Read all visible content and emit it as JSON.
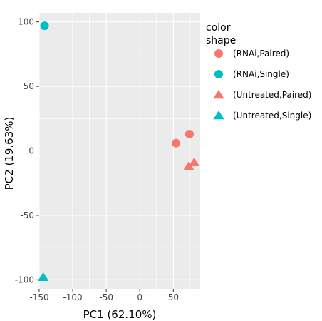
{
  "chart_data": {
    "type": "scatter",
    "xlabel": "PC1 (62.10%)",
    "ylabel": "PC2 (19.63%)",
    "xlim": [
      -150,
      90
    ],
    "ylim": [
      -107,
      107
    ],
    "x_ticks": [
      -150,
      -100,
      -50,
      0,
      50
    ],
    "y_ticks": [
      -100,
      -50,
      0,
      50,
      100
    ],
    "x_tick_labels": [
      "-150",
      "-100",
      "-50",
      "0",
      "50"
    ],
    "y_tick_labels": [
      "-100",
      "-50",
      "0",
      "50",
      "100"
    ],
    "grid": true,
    "panel_background": "#ebebeb",
    "grid_color": "#ffffff",
    "legend": {
      "placement": "right",
      "title_line1": "color",
      "title_line2": "shape",
      "entries": [
        {
          "label": "(RNAi,Paired)",
          "color": "#f8766d",
          "shape": "circle"
        },
        {
          "label": "(RNAi,Single)",
          "color": "#00bfc4",
          "shape": "circle"
        },
        {
          "label": "(Untreated,Paired)",
          "color": "#f8766d",
          "shape": "triangle"
        },
        {
          "label": "(Untreated,Single)",
          "color": "#00bfc4",
          "shape": "triangle"
        }
      ]
    },
    "series": [
      {
        "group": "(RNAi,Paired)",
        "color": "#f8766d",
        "shape": "circle",
        "points": [
          {
            "x": 54,
            "y": 6
          },
          {
            "x": 74,
            "y": 13
          }
        ]
      },
      {
        "group": "(RNAi,Single)",
        "color": "#00bfc4",
        "shape": "circle",
        "points": [
          {
            "x": -142,
            "y": 97
          }
        ]
      },
      {
        "group": "(Untreated,Paired)",
        "color": "#f8766d",
        "shape": "triangle",
        "points": [
          {
            "x": 73,
            "y": -12
          },
          {
            "x": 81,
            "y": -9
          }
        ]
      },
      {
        "group": "(Untreated,Single)",
        "color": "#00bfc4",
        "shape": "triangle",
        "points": [
          {
            "x": -144,
            "y": -98
          }
        ]
      }
    ]
  }
}
